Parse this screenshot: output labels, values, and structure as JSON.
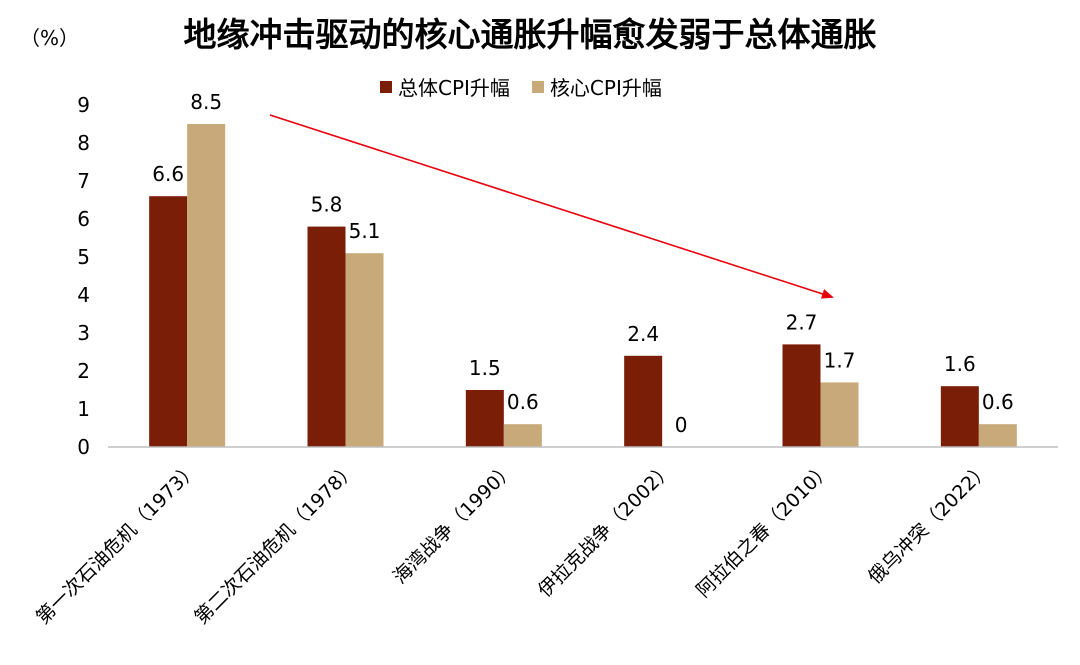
{
  "chart_data": {
    "type": "bar",
    "title": "地缘冲击驱动的核心通胀升幅愈发弱于总体通胀",
    "unit_label": "（%）",
    "categories": [
      "第一次石油危机（1973）",
      "第二次石油危机（1978）",
      "海湾战争（1990）",
      "伊拉克战争（2002）",
      "阿拉伯之春（2010）",
      "俄乌冲突（2022）"
    ],
    "series": [
      {
        "name": "总体CPI升幅",
        "color": "#7b1e08",
        "values": [
          6.6,
          5.8,
          1.5,
          2.4,
          2.7,
          1.6
        ]
      },
      {
        "name": "核心CPI升幅",
        "color": "#c8a97a",
        "values": [
          8.5,
          5.1,
          0.6,
          0,
          1.7,
          0.6
        ]
      }
    ],
    "data_labels": [
      [
        "6.6",
        "5.8",
        "1.5",
        "2.4",
        "2.7",
        "1.6"
      ],
      [
        "8.5",
        "5.1",
        "0.6",
        "0",
        "1.7",
        "0.6"
      ]
    ],
    "ylim": [
      0,
      9
    ],
    "yticks": [
      "0",
      "1",
      "2",
      "3",
      "4",
      "5",
      "6",
      "7",
      "8",
      "9"
    ],
    "grid": false,
    "legend_position": "top",
    "annotation": {
      "type": "arrow",
      "color": "#e8000b",
      "description": "downward trend arrow"
    }
  }
}
